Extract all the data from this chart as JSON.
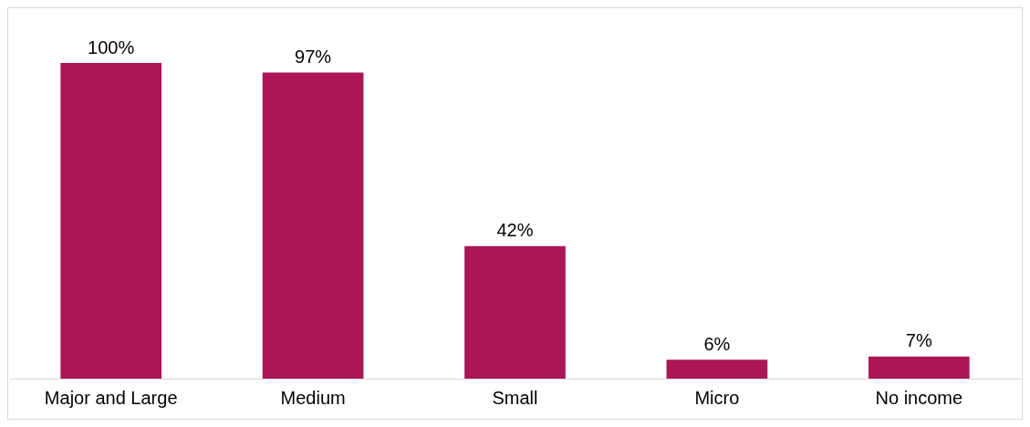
{
  "chart_data": {
    "type": "bar",
    "categories": [
      "Major and Large",
      "Medium",
      "Small",
      "Micro",
      "No income"
    ],
    "values": [
      100,
      97,
      42,
      6,
      7
    ],
    "value_labels": [
      "100%",
      "97%",
      "42%",
      "6%",
      "7%"
    ],
    "color": "#ab1657",
    "grid": false,
    "legend": false
  }
}
